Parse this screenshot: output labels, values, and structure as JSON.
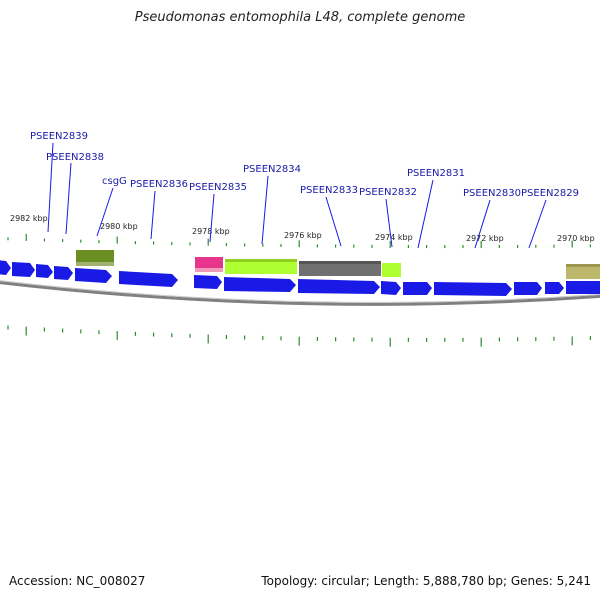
{
  "title": "Pseudomonas entomophila L48, complete genome",
  "footer": {
    "accession": "Accession: NC_008027",
    "summary": "Topology: circular; Length: 5,888,780 bp; Genes: 5,241"
  },
  "colors": {
    "forward_gene": "#1a1ae6",
    "reverse_gene": "#1a1ae6",
    "backbone": "#808080",
    "ticks": "#2e8b2e",
    "label": "#1a1aa8",
    "csgG": "#6b8e23",
    "PSEEN2835": "#e6358b",
    "PSEEN2834": "#adff2f",
    "PSEEN2833": "#707070",
    "PSEEN2832": "#adff2f",
    "PSEEN2829_neighbor": "#bdb76b"
  },
  "ticks": [
    {
      "label": "2982 kbp"
    },
    {
      "label": "2980 kbp"
    },
    {
      "label": "2978 kbp"
    },
    {
      "label": "2976 kbp"
    },
    {
      "label": "2974 kbp"
    },
    {
      "label": "2972 kbp"
    },
    {
      "label": "2970 kbp"
    }
  ],
  "genes": [
    {
      "name": "PSEEN2839"
    },
    {
      "name": "PSEEN2838"
    },
    {
      "name": "csgG"
    },
    {
      "name": "PSEEN2836"
    },
    {
      "name": "PSEEN2835"
    },
    {
      "name": "PSEEN2834"
    },
    {
      "name": "PSEEN2833"
    },
    {
      "name": "PSEEN2832"
    },
    {
      "name": "PSEEN2831"
    },
    {
      "name": "PSEEN2830"
    },
    {
      "name": "PSEEN2829"
    }
  ]
}
